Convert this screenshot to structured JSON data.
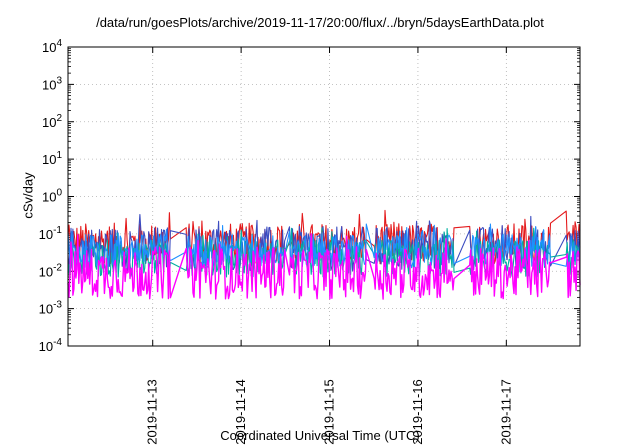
{
  "chart_data": {
    "type": "line",
    "title": "/data/run/goesPlots/archive/2019-11-17/20:00/flux/../bryn/5daysEarthData.plot",
    "xlabel": "Coordinated Universal Time (UTC)",
    "ylabel": "cSv/day",
    "yscale": "log",
    "ylim": [
      0.0001,
      10000
    ],
    "yticks": [
      {
        "value": 0.0001,
        "mantissa": "10",
        "exp": "-4"
      },
      {
        "value": 0.001,
        "mantissa": "10",
        "exp": "-3"
      },
      {
        "value": 0.01,
        "mantissa": "10",
        "exp": "-2"
      },
      {
        "value": 0.1,
        "mantissa": "10",
        "exp": "-1"
      },
      {
        "value": 1,
        "mantissa": "10",
        "exp": "0"
      },
      {
        "value": 10,
        "mantissa": "10",
        "exp": "1"
      },
      {
        "value": 100,
        "mantissa": "10",
        "exp": "2"
      },
      {
        "value": 1000,
        "mantissa": "10",
        "exp": "3"
      },
      {
        "value": 10000,
        "mantissa": "10",
        "exp": "4"
      }
    ],
    "xlim": [
      "2019-11-12T01:00",
      "2019-11-17T20:00"
    ],
    "xticks": [
      "2019-11-13",
      "2019-11-14",
      "2019-11-15",
      "2019-11-16",
      "2019-11-17"
    ],
    "grid": true,
    "legend": "none",
    "gaps": [
      [
        "2019-11-13T05:00",
        "2019-11-13T09:00"
      ],
      [
        "2019-11-14T12:00",
        "2019-11-14T13:00"
      ],
      [
        "2019-11-15T10:00",
        "2019-11-15T12:00"
      ],
      [
        "2019-11-16T10:00",
        "2019-11-16T14:00"
      ],
      [
        "2019-11-17T12:00",
        "2019-11-17T16:00"
      ]
    ],
    "series": [
      {
        "color": "#e41a1c",
        "base": 0.055,
        "spread": 0.55
      },
      {
        "color": "#3b4cc0",
        "base": 0.04,
        "spread": 0.6
      },
      {
        "color": "#00b0a0",
        "base": 0.022,
        "spread": 0.5
      },
      {
        "color": "#1e8fff",
        "base": 0.035,
        "spread": 0.45
      },
      {
        "color": "#ff00ff",
        "base": 0.009,
        "spread": 0.7
      }
    ]
  }
}
